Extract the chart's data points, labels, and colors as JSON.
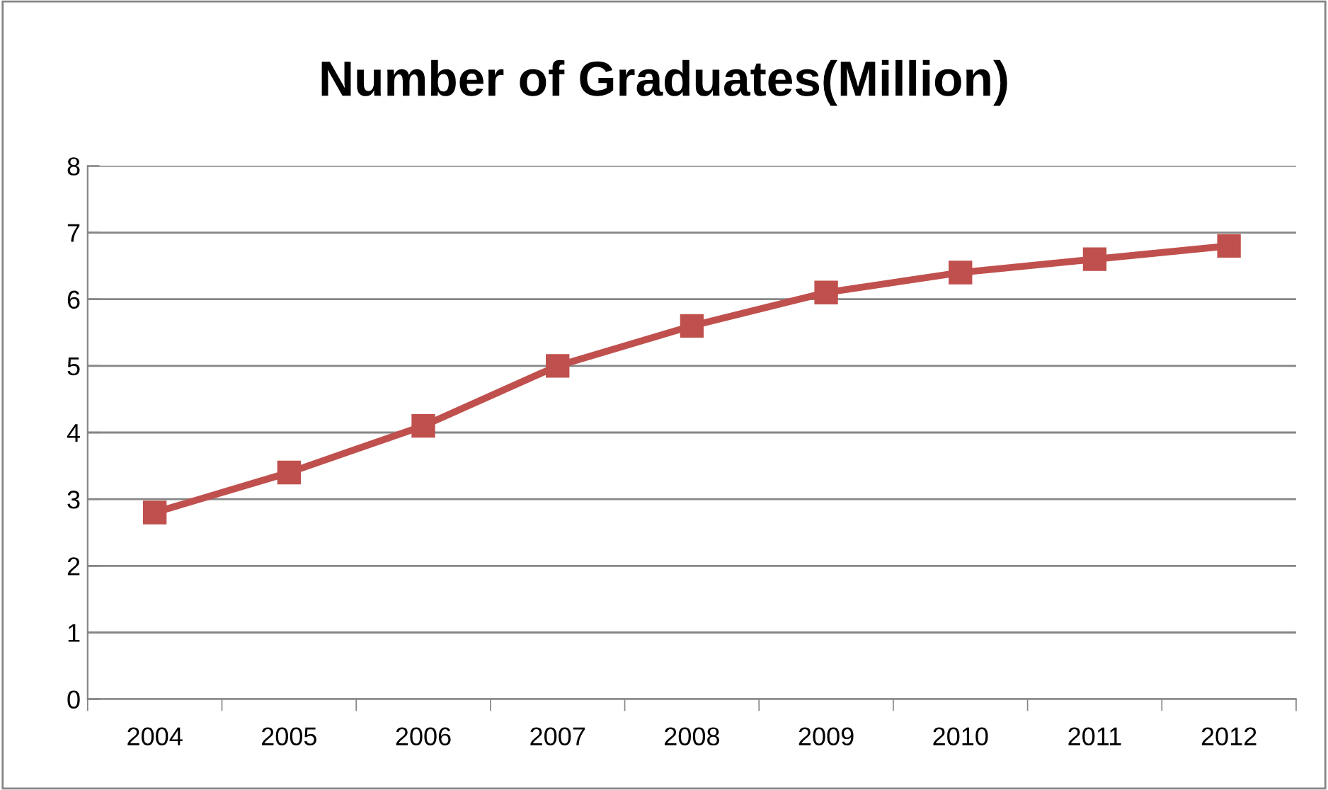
{
  "chart_data": {
    "type": "line",
    "title": "Number of Graduates(Million)",
    "categories": [
      "2004",
      "2005",
      "2006",
      "2007",
      "2008",
      "2009",
      "2010",
      "2011",
      "2012"
    ],
    "series": [
      {
        "color": "#c0504d",
        "values": [
          2.8,
          3.4,
          4.1,
          5.0,
          5.6,
          6.1,
          6.4,
          6.6,
          6.8
        ]
      }
    ],
    "ylim": [
      0,
      8
    ],
    "yticks": [
      0,
      1,
      2,
      3,
      4,
      5,
      6,
      7,
      8
    ],
    "grid": "y",
    "marker": "square",
    "line_style": "solid",
    "legend": false
  }
}
